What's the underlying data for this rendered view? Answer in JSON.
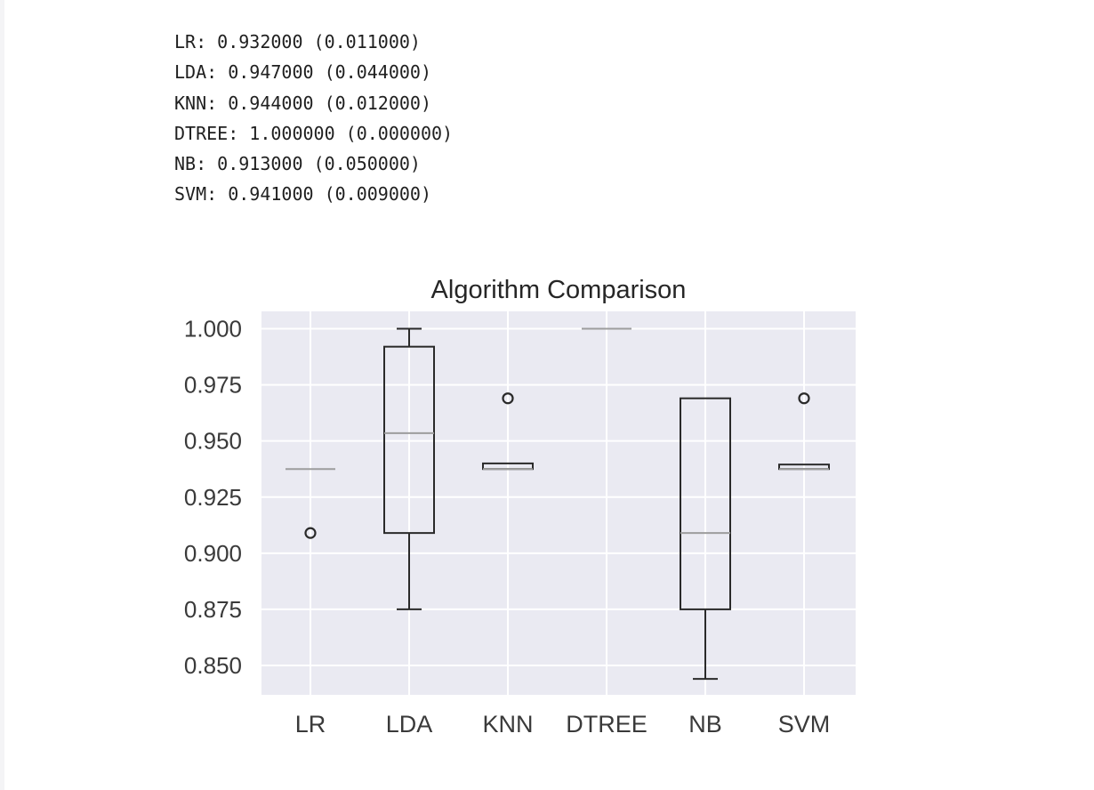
{
  "output_lines": [
    "LR: 0.932000 (0.011000)",
    "LDA: 0.947000 (0.044000)",
    "KNN: 0.944000 (0.012000)",
    "DTREE: 1.000000 (0.000000)",
    "NB: 0.913000 (0.050000)",
    "SVM: 0.941000 (0.009000)"
  ],
  "chart_data": {
    "type": "box",
    "title": "Algorithm Comparison",
    "xlabel": "",
    "ylabel": "",
    "ylim": [
      0.838,
      1.007
    ],
    "yticks": [
      0.85,
      0.875,
      0.9,
      0.925,
      0.95,
      0.975,
      1.0
    ],
    "ytick_labels": [
      "0.850",
      "0.875",
      "0.900",
      "0.925",
      "0.950",
      "0.975",
      "1.000"
    ],
    "categories": [
      "LR",
      "LDA",
      "KNN",
      "DTREE",
      "NB",
      "SVM"
    ],
    "grid": true,
    "style": "seaborn",
    "colors": {
      "plot_bg": "#eaeaf2",
      "grid": "#ffffff",
      "box": "#2a2a2a",
      "median": "#9d9d9d"
    },
    "boxes": [
      {
        "name": "LR",
        "whislo": 0.9375,
        "q1": 0.9375,
        "median": 0.9375,
        "q3": 0.9375,
        "whishi": 0.9375,
        "fliers": [
          0.909
        ]
      },
      {
        "name": "LDA",
        "whislo": 0.875,
        "q1": 0.909,
        "median": 0.9535,
        "q3": 0.992,
        "whishi": 1.0,
        "fliers": []
      },
      {
        "name": "KNN",
        "whislo": 0.9375,
        "q1": 0.9375,
        "median": 0.9375,
        "q3": 0.94,
        "whishi": 0.94,
        "fliers": [
          0.969
        ]
      },
      {
        "name": "DTREE",
        "whislo": 1.0,
        "q1": 1.0,
        "median": 1.0,
        "q3": 1.0,
        "whishi": 1.0,
        "fliers": []
      },
      {
        "name": "NB",
        "whislo": 0.844,
        "q1": 0.875,
        "median": 0.909,
        "q3": 0.969,
        "whishi": 0.969,
        "fliers": []
      },
      {
        "name": "SVM",
        "whislo": 0.9375,
        "q1": 0.9375,
        "median": 0.9375,
        "q3": 0.9395,
        "whishi": 0.9395,
        "fliers": [
          0.969
        ]
      }
    ]
  }
}
